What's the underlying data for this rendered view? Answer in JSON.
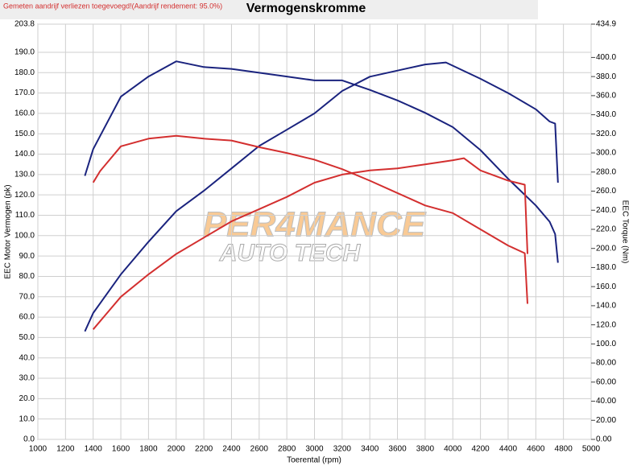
{
  "chart_data": {
    "type": "line",
    "title": "Vermogenskromme",
    "note": "Gemeten aandrijf verliezen toegevoegd!(Aandrijf rendement: 95.0%)",
    "xlabel": "Toerental (rpm)",
    "ylabel": "EEC Motor Vermogen (pk)",
    "y2label": "EEC Torque (Nm)",
    "watermark": [
      "PER4MANCE",
      "AUTO TECH"
    ],
    "grid": true,
    "xlim": [
      1000,
      5000
    ],
    "xticks": [
      1000,
      1200,
      1400,
      1600,
      1800,
      2000,
      2200,
      2400,
      2600,
      2800,
      3000,
      3200,
      3400,
      3600,
      3800,
      4000,
      4200,
      4400,
      4600,
      4800,
      5000
    ],
    "ylim": [
      0,
      203.8
    ],
    "yticks": [
      {
        "value": 0,
        "label": "0.0"
      },
      {
        "value": 10,
        "label": "10.0"
      },
      {
        "value": 20,
        "label": "20.0"
      },
      {
        "value": 30,
        "label": "30.0"
      },
      {
        "value": 40,
        "label": "40.0"
      },
      {
        "value": 50,
        "label": "50.0"
      },
      {
        "value": 60,
        "label": "60.0"
      },
      {
        "value": 70,
        "label": "70.0"
      },
      {
        "value": 80,
        "label": "80.0"
      },
      {
        "value": 90,
        "label": "90.0"
      },
      {
        "value": 100,
        "label": "100.0"
      },
      {
        "value": 110,
        "label": "110.0"
      },
      {
        "value": 120,
        "label": "120.0"
      },
      {
        "value": 130,
        "label": "130.0"
      },
      {
        "value": 140,
        "label": "140.0"
      },
      {
        "value": 150,
        "label": "150.0"
      },
      {
        "value": 160,
        "label": "160.0"
      },
      {
        "value": 170,
        "label": "170.0"
      },
      {
        "value": 180,
        "label": "180.0"
      },
      {
        "value": 190,
        "label": "190.0"
      },
      203.8
    ],
    "y2lim": [
      0,
      434.9
    ],
    "y2ticks": [
      {
        "value": 0,
        "label": "0.00"
      },
      {
        "value": 20,
        "label": "20.00"
      },
      {
        "value": 40,
        "label": "40.00"
      },
      {
        "value": 60,
        "label": "60.00"
      },
      {
        "value": 80,
        "label": "80.00"
      },
      {
        "value": 100,
        "label": "100.0"
      },
      {
        "value": 120,
        "label": "120.0"
      },
      {
        "value": 140,
        "label": "140.0"
      },
      {
        "value": 160,
        "label": "160.0"
      },
      {
        "value": 180,
        "label": "180.0"
      },
      {
        "value": 200,
        "label": "200.0"
      },
      {
        "value": 220,
        "label": "220.0"
      },
      {
        "value": 240,
        "label": "240.0"
      },
      {
        "value": 260,
        "label": "260.0"
      },
      {
        "value": 280,
        "label": "280.0"
      },
      {
        "value": 300,
        "label": "300.0"
      },
      {
        "value": 320,
        "label": "320.0"
      },
      {
        "value": 340,
        "label": "340.0"
      },
      {
        "value": 360,
        "label": "360.0"
      },
      {
        "value": 380,
        "label": "380.0"
      },
      {
        "value": 400,
        "label": "400.0"
      },
      434.9
    ],
    "series": [
      {
        "color": "#1a237e",
        "axis": "y",
        "x": [
          1340,
          1400,
          1600,
          1800,
          2000,
          2200,
          2400,
          2600,
          2800,
          3000,
          3200,
          3400,
          3600,
          3800,
          3950,
          4200,
          4400,
          4600,
          4700,
          4740,
          4760
        ],
        "values": [
          53,
          62,
          81,
          97,
          112,
          122,
          133,
          144,
          152,
          160,
          171,
          178,
          181,
          184,
          185,
          177,
          170,
          162,
          156,
          155,
          126
        ]
      },
      {
        "color": "#1a237e",
        "axis": "y2",
        "x": [
          1340,
          1400,
          1600,
          1800,
          2000,
          2200,
          2400,
          2600,
          2800,
          3000,
          3200,
          3400,
          3600,
          3800,
          4000,
          4200,
          4400,
          4600,
          4700,
          4740,
          4760
        ],
        "values": [
          276,
          304,
          359,
          380,
          396,
          390,
          388,
          384,
          380,
          376,
          376,
          366,
          355,
          342,
          327,
          303,
          273,
          245,
          228,
          215,
          185
        ]
      },
      {
        "color": "#d32f2f",
        "axis": "y",
        "x": [
          1400,
          1600,
          1800,
          2000,
          2200,
          2400,
          2600,
          2800,
          3000,
          3200,
          3400,
          3600,
          3800,
          4000,
          4080,
          4200,
          4400,
          4520,
          4540
        ],
        "values": [
          54,
          70,
          81,
          91,
          99,
          107,
          113,
          119,
          126,
          130,
          132,
          133,
          135,
          137,
          138,
          132,
          127,
          125,
          91
        ]
      },
      {
        "color": "#d32f2f",
        "axis": "y2",
        "x": [
          1400,
          1450,
          1600,
          1800,
          2000,
          2200,
          2400,
          2600,
          2800,
          3000,
          3200,
          3400,
          3600,
          3800,
          4000,
          4200,
          4400,
          4520,
          4540
        ],
        "values": [
          269,
          281,
          307,
          315,
          318,
          315,
          313,
          306,
          300,
          293,
          283,
          271,
          258,
          245,
          237,
          220,
          203,
          195,
          142
        ]
      }
    ]
  }
}
